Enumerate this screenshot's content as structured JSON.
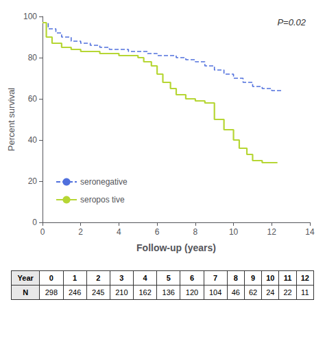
{
  "chart_data": {
    "type": "step",
    "xlabel": "Follow-up (years)",
    "ylabel": "Percent survival",
    "annotations": [
      "P=0.02"
    ],
    "series": [
      {
        "name": "seronegative",
        "line_style": "dashed",
        "x": [
          0,
          0.3,
          0.7,
          1.0,
          1.5,
          2.0,
          2.5,
          3.0,
          3.5,
          4.0,
          4.5,
          5.0,
          5.5,
          6.0,
          6.5,
          7.0,
          7.5,
          8.0,
          8.5,
          9.0,
          9.5,
          10.0,
          10.5,
          11.0,
          11.5,
          12.0,
          12.5
        ],
        "values": [
          97,
          94,
          92,
          90,
          88,
          87,
          86,
          85,
          84,
          84,
          83,
          83,
          82,
          81,
          81,
          80,
          79,
          78,
          76,
          74,
          72,
          70,
          68,
          66,
          65,
          64,
          64
        ]
      },
      {
        "name": "seropos tive",
        "line_style": "solid",
        "x": [
          0,
          0.2,
          0.5,
          1.0,
          1.5,
          2.0,
          2.5,
          3.0,
          3.5,
          4.0,
          4.5,
          5.0,
          5.3,
          5.7,
          6.0,
          6.3,
          6.7,
          7.0,
          7.5,
          8.0,
          8.5,
          9.0,
          9.5,
          10.0,
          10.3,
          10.7,
          11.0,
          11.5,
          12.0,
          12.3
        ],
        "values": [
          97,
          90,
          87,
          85,
          84,
          83,
          83,
          82,
          82,
          81,
          81,
          80,
          78,
          76,
          72,
          68,
          65,
          62,
          60,
          59,
          58,
          50,
          45,
          40,
          36,
          33,
          30,
          29,
          29,
          29
        ]
      }
    ],
    "xlim": [
      0,
      14
    ],
    "ylim": [
      0,
      100
    ],
    "xticks": [
      0,
      2,
      4,
      6,
      8,
      10,
      12,
      14
    ],
    "yticks": [
      0,
      20,
      40,
      60,
      80,
      100
    ],
    "grid": false,
    "legend": "lower left",
    "table": {
      "row_labels": [
        "Year",
        "N"
      ],
      "rows": [
        [
          "0",
          "1",
          "2",
          "3",
          "4",
          "5",
          "6",
          "7",
          "8",
          "9",
          "10",
          "11",
          "12"
        ],
        [
          "298",
          "246",
          "245",
          "210",
          "162",
          "136",
          "120",
          "104",
          "46",
          "62",
          "24",
          "22",
          "11"
        ]
      ]
    }
  }
}
